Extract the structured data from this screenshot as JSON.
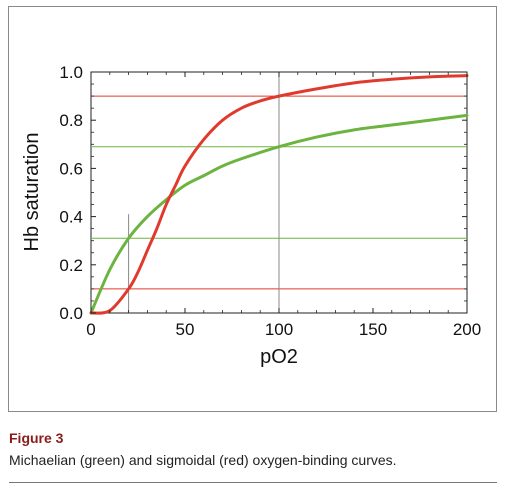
{
  "figure": {
    "label": "Figure 3",
    "caption": "Michaelian (green) and sigmoidal (red) oxygen-binding curves."
  },
  "chart_data": {
    "type": "line",
    "xlabel": "pO2",
    "ylabel": "Hb saturation",
    "xlim": [
      0,
      200
    ],
    "ylim": [
      0,
      1
    ],
    "x_ticks": [
      "0",
      "50",
      "100",
      "150",
      "200"
    ],
    "y_ticks": [
      "0.0",
      "0.2",
      "0.4",
      "0.6",
      "0.8",
      "1.0"
    ],
    "grid": false,
    "series": [
      {
        "color": "#e03a2e",
        "x": [
          0,
          10,
          20,
          25,
          30,
          35,
          40,
          45,
          50,
          60,
          70,
          80,
          90,
          100,
          120,
          140,
          160,
          180,
          200
        ],
        "y": [
          0,
          0.01,
          0.1,
          0.17,
          0.26,
          0.35,
          0.45,
          0.53,
          0.61,
          0.72,
          0.8,
          0.85,
          0.88,
          0.9,
          0.93,
          0.955,
          0.97,
          0.98,
          0.985
        ]
      },
      {
        "color": "#6cb33f",
        "x": [
          0,
          10,
          20,
          30,
          40,
          50,
          60,
          70,
          80,
          100,
          120,
          140,
          160,
          180,
          200
        ],
        "y": [
          0,
          0.18,
          0.31,
          0.4,
          0.47,
          0.53,
          0.57,
          0.61,
          0.64,
          0.69,
          0.73,
          0.76,
          0.78,
          0.8,
          0.82
        ]
      }
    ],
    "reference_lines": {
      "horizontal": [
        {
          "y": 0.9,
          "color": "#e03a2e"
        },
        {
          "y": 0.1,
          "color": "#e03a2e"
        },
        {
          "y": 0.69,
          "color": "#6cb33f"
        },
        {
          "y": 0.31,
          "color": "#6cb33f"
        }
      ],
      "vertical": [
        {
          "x": 20,
          "y_top": 0.41,
          "color": "#888888"
        },
        {
          "x": 100,
          "y_top": 1.0,
          "color": "#888888"
        }
      ]
    }
  }
}
